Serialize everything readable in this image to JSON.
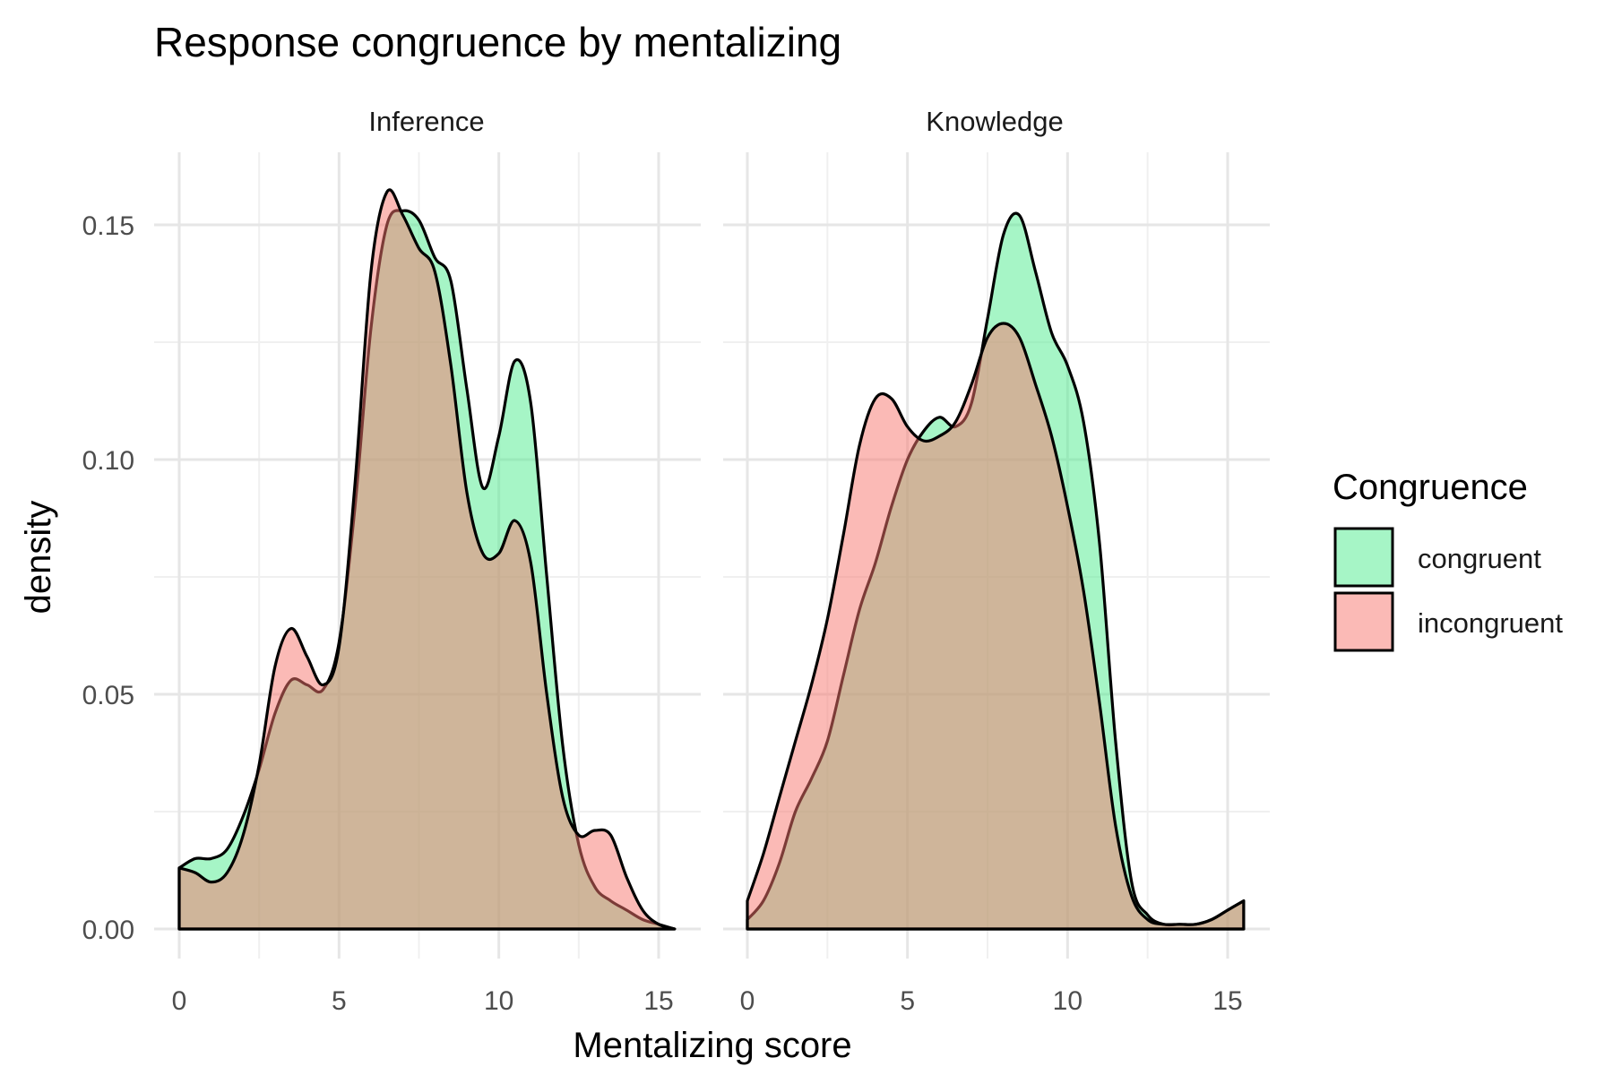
{
  "chart_data": {
    "type": "area",
    "title": "Response congruence by mentalizing",
    "xlabel": "Mentalizing score",
    "ylabel": "density",
    "xlim": [
      0,
      15.5
    ],
    "ylim": [
      0,
      0.16
    ],
    "x_ticks": [
      "0",
      "5",
      "10",
      "15"
    ],
    "y_ticks": [
      "0.00",
      "0.05",
      "0.10",
      "0.15"
    ],
    "grid": true,
    "legend": {
      "title": "Congruence",
      "placement": "right",
      "entries": [
        "congruent",
        "incongruent"
      ]
    },
    "colors": {
      "congruent": "#4EEB8E",
      "incongruent": "#F8766D",
      "outline": "#000000",
      "grid_major": "#e6e6e6",
      "grid_minor": "#f0f0f0"
    },
    "facets": [
      {
        "label": "Inference",
        "series": [
          {
            "name": "congruent",
            "x": [
              0,
              0.5,
              1,
              1.5,
              2,
              2.5,
              3,
              3.5,
              4,
              4.5,
              5,
              5.5,
              6,
              6.5,
              7,
              7.5,
              8,
              8.5,
              9,
              9.5,
              10,
              10.5,
              11,
              11.5,
              12,
              12.5,
              13,
              13.5,
              14,
              14.5,
              15,
              15.5
            ],
            "y": [
              0.013,
              0.015,
              0.015,
              0.017,
              0.024,
              0.034,
              0.046,
              0.053,
              0.052,
              0.051,
              0.061,
              0.09,
              0.128,
              0.15,
              0.153,
              0.151,
              0.143,
              0.138,
              0.115,
              0.094,
              0.105,
              0.121,
              0.112,
              0.075,
              0.039,
              0.018,
              0.009,
              0.006,
              0.004,
              0.002,
              0.001,
              0
            ]
          },
          {
            "name": "incongruent",
            "x": [
              0,
              0.5,
              1,
              1.5,
              2,
              2.5,
              3,
              3.5,
              4,
              4.5,
              5,
              5.5,
              6,
              6.5,
              7,
              7.5,
              8,
              8.5,
              9,
              9.5,
              10,
              10.5,
              11,
              11.5,
              12,
              12.5,
              13,
              13.5,
              14,
              14.5,
              15,
              15.5
            ],
            "y": [
              0.013,
              0.012,
              0.01,
              0.012,
              0.02,
              0.035,
              0.056,
              0.064,
              0.058,
              0.052,
              0.06,
              0.095,
              0.14,
              0.157,
              0.152,
              0.145,
              0.14,
              0.12,
              0.093,
              0.08,
              0.08,
              0.087,
              0.078,
              0.05,
              0.028,
              0.02,
              0.021,
              0.02,
              0.011,
              0.004,
              0.001,
              0
            ]
          }
        ]
      },
      {
        "label": "Knowledge",
        "series": [
          {
            "name": "congruent",
            "x": [
              0,
              0.5,
              1,
              1.5,
              2,
              2.5,
              3,
              3.5,
              4,
              4.5,
              5,
              5.5,
              6,
              6.5,
              7,
              7.5,
              8,
              8.5,
              9,
              9.5,
              10,
              10.5,
              11,
              11.5,
              12,
              12.5,
              13,
              13.5,
              14,
              14.5,
              15,
              15.5
            ],
            "y": [
              0.002,
              0.006,
              0.014,
              0.025,
              0.032,
              0.04,
              0.054,
              0.068,
              0.078,
              0.09,
              0.1,
              0.106,
              0.109,
              0.107,
              0.112,
              0.13,
              0.148,
              0.152,
              0.14,
              0.127,
              0.12,
              0.108,
              0.082,
              0.04,
              0.01,
              0.003,
              0.001,
              0.001,
              0.001,
              0.002,
              0.004,
              0.006
            ]
          },
          {
            "name": "incongruent",
            "x": [
              0,
              0.5,
              1,
              1.5,
              2,
              2.5,
              3,
              3.5,
              4,
              4.5,
              5,
              5.5,
              6,
              6.5,
              7,
              7.5,
              8,
              8.5,
              9,
              9.5,
              10,
              10.5,
              11,
              11.5,
              12,
              12.5,
              13,
              13.5,
              14,
              14.5,
              15,
              15.5
            ],
            "y": [
              0.006,
              0.016,
              0.028,
              0.04,
              0.052,
              0.066,
              0.084,
              0.103,
              0.113,
              0.113,
              0.107,
              0.104,
              0.105,
              0.108,
              0.116,
              0.126,
              0.129,
              0.126,
              0.116,
              0.105,
              0.09,
              0.072,
              0.048,
              0.022,
              0.007,
              0.002,
              0.001,
              0.001,
              0.001,
              0.002,
              0.004,
              0.006
            ]
          }
        ]
      }
    ]
  }
}
